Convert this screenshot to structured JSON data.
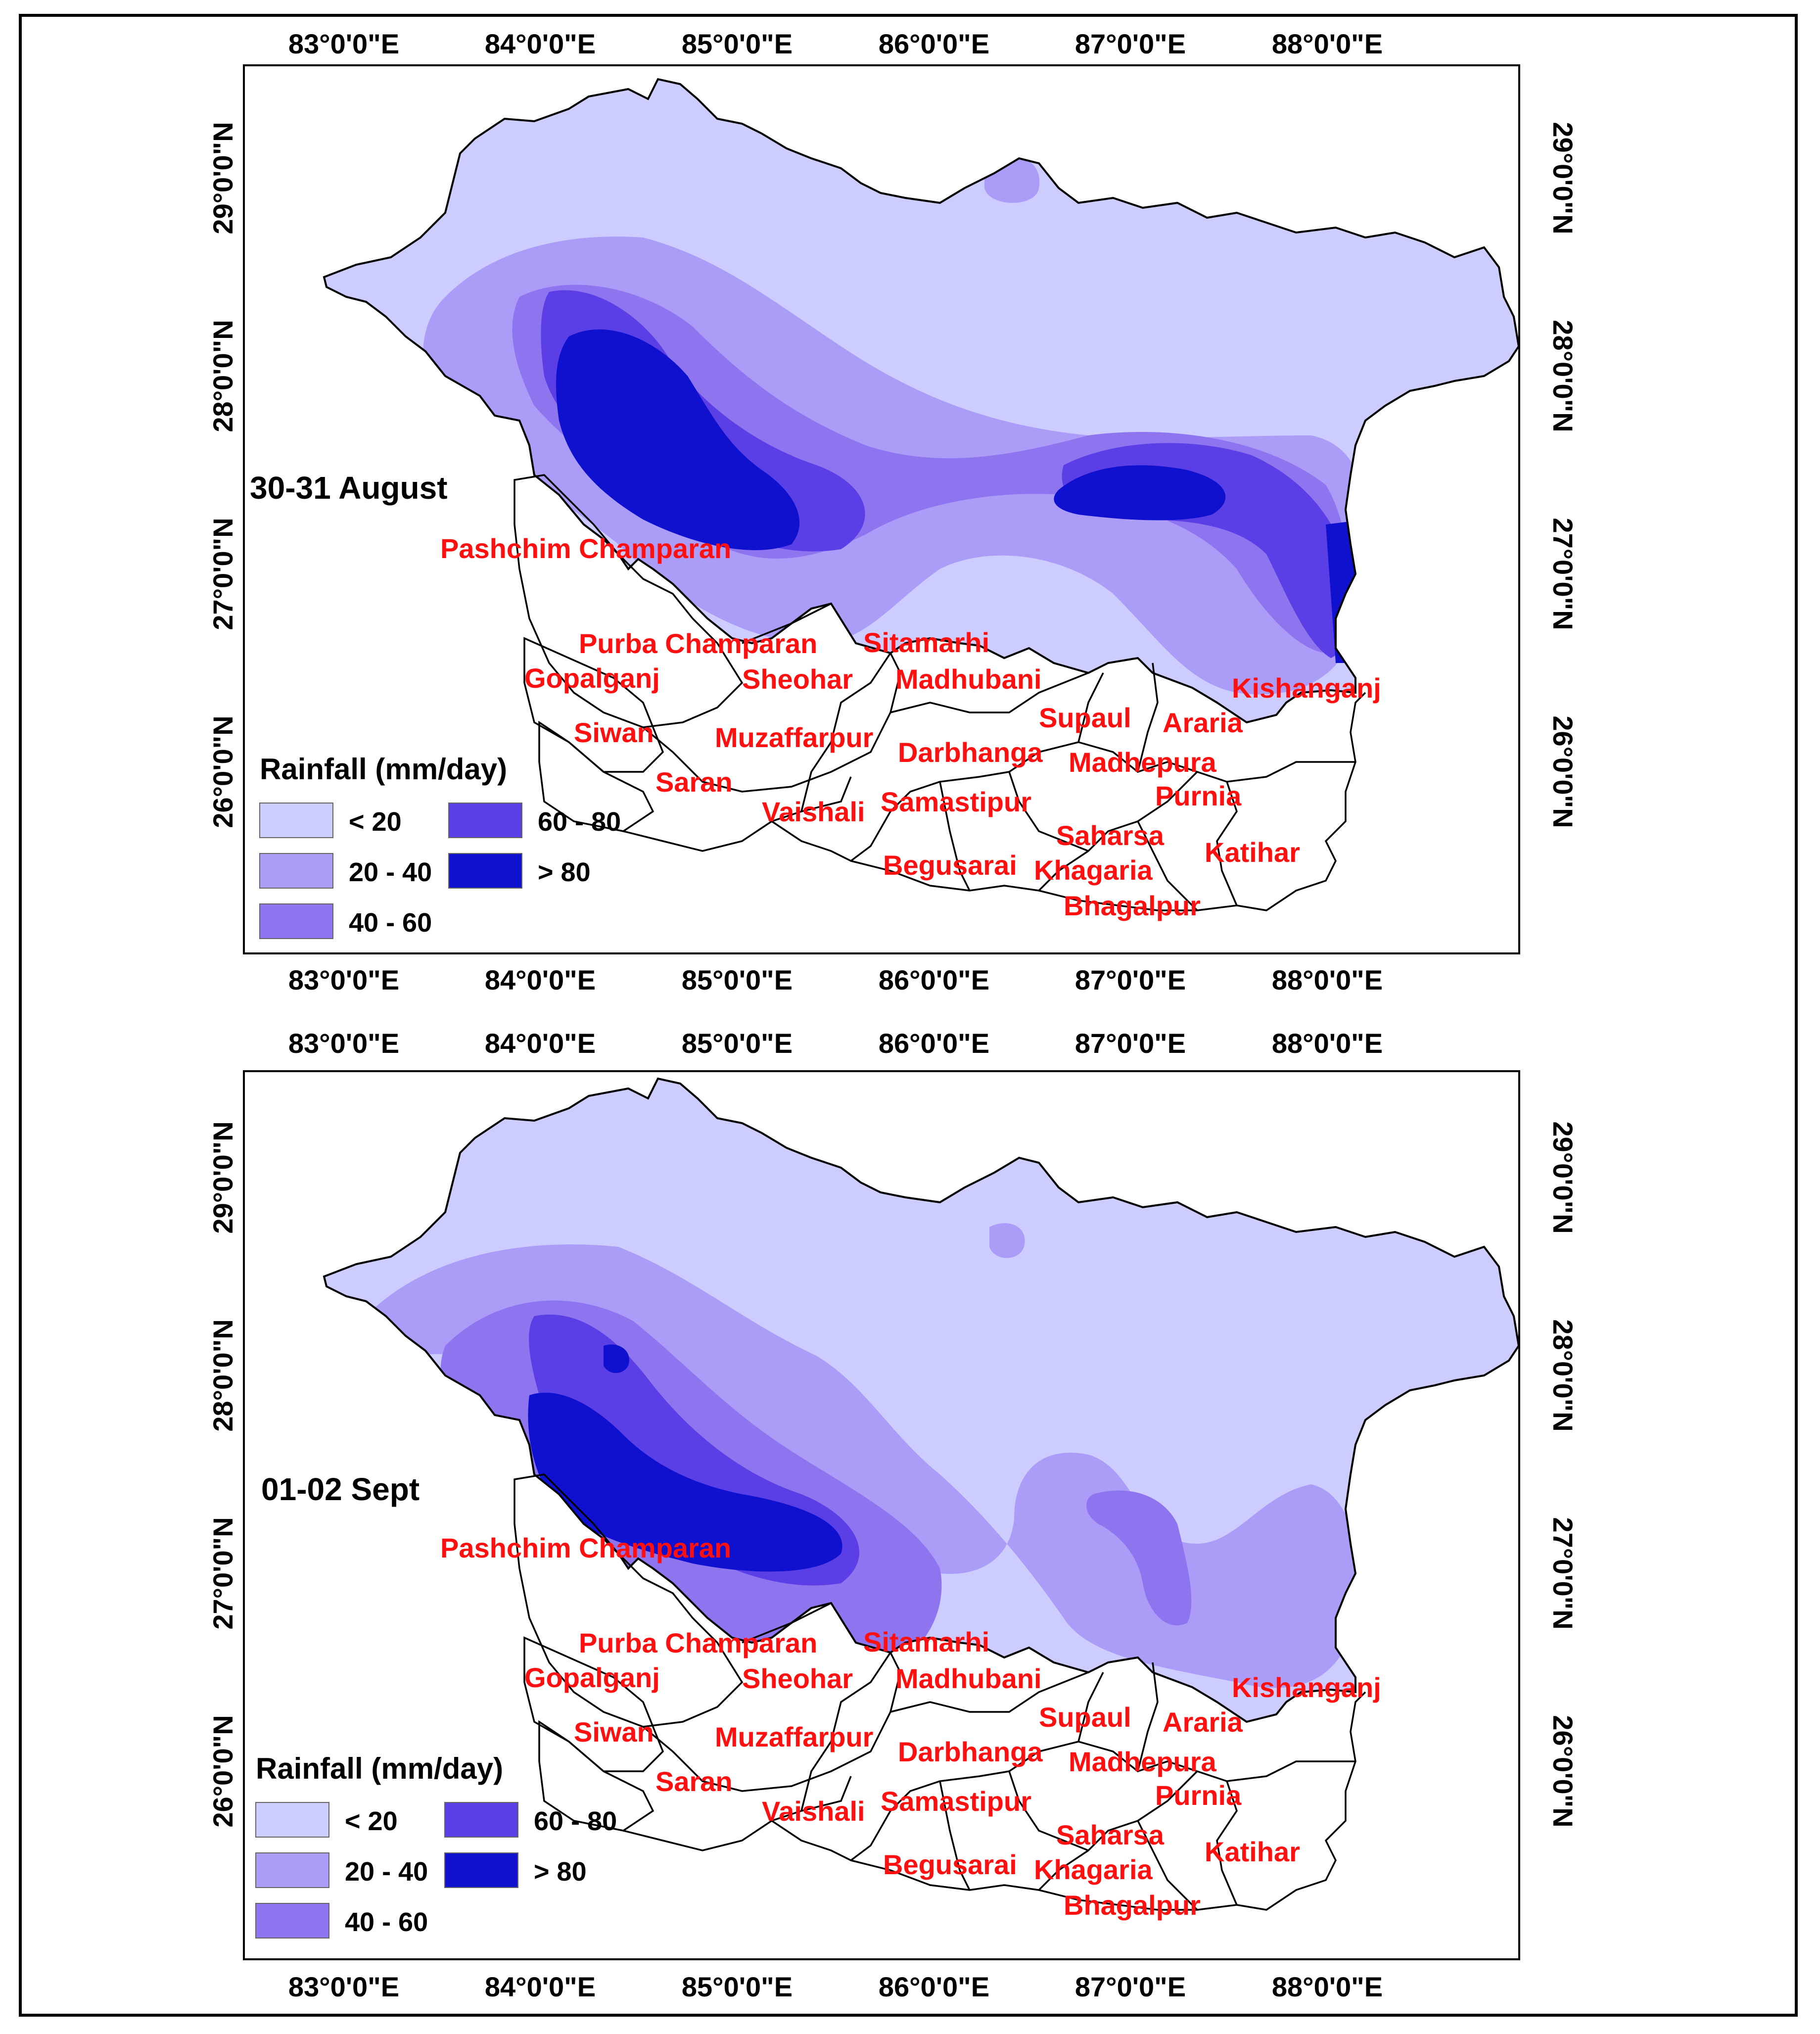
{
  "colors": {
    "lt20": "#ccccff",
    "r20_40": "#aa9cf7",
    "r40_60": "#8f74ef",
    "r60_80": "#5b3fe6",
    "gt80": "#1010cf",
    "label_red": "#ff1010",
    "border": "#000000"
  },
  "axes": {
    "lon_labels": [
      "83°0'0\"E",
      "84°0'0\"E",
      "85°0'0\"E",
      "86°0'0\"E",
      "87°0'0\"E",
      "88°0'0\"E"
    ],
    "lat_labels": [
      "29°0'0\"N",
      "28°0'0\"N",
      "27°0'0\"N",
      "26°0'0\"N"
    ]
  },
  "legend": {
    "title": "Rainfall (mm/day)",
    "classes": [
      {
        "label": "< 20",
        "color_key": "lt20"
      },
      {
        "label": "20 - 40",
        "color_key": "r20_40"
      },
      {
        "label": "40 - 60",
        "color_key": "r40_60"
      },
      {
        "label": "60 - 80",
        "color_key": "r60_80"
      },
      {
        "label": "> 80",
        "color_key": "gt80"
      }
    ]
  },
  "panels": [
    {
      "title": "30-31 August"
    },
    {
      "title": "01-02 Sept"
    }
  ],
  "districts": [
    "Pashchim Champaran",
    "Purba Champaran",
    "Sitamarhi",
    "Gopalganj",
    "Sheohar",
    "Madhubani",
    "Kishanganj",
    "Siwan",
    "Muzaffarpur",
    "Supaul",
    "Araria",
    "Darbhanga",
    "Madhepura",
    "Saran",
    "Purnia",
    "Vaishali",
    "Samastipur",
    "Saharsa",
    "Katihar",
    "Begusarai",
    "Khagaria",
    "Bhagalpur"
  ]
}
